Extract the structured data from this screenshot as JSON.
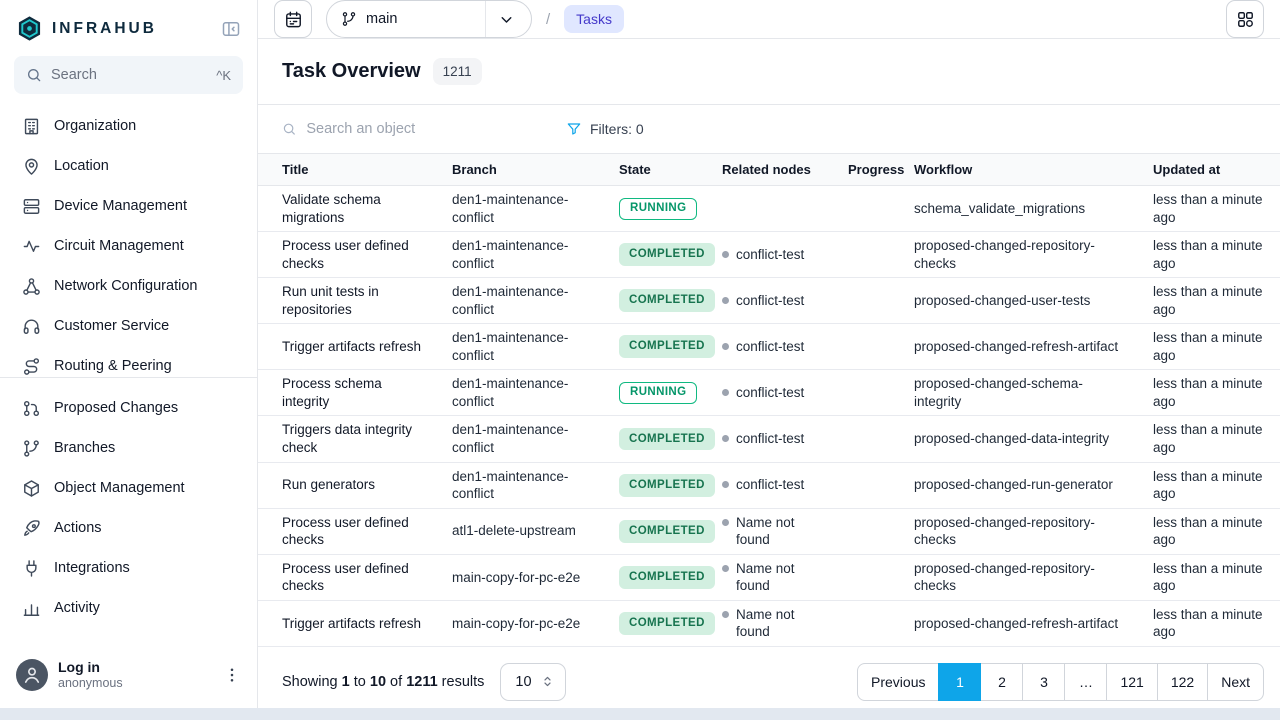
{
  "colors": {
    "accent": "#0ea5e9",
    "brand_navy": "#0e2a3d",
    "brand_teal": "#20c8cd",
    "completed_bg": "#d2efe0",
    "completed_text": "#17744f",
    "running_green": "#10b981",
    "breadcrumb_bg": "#e0e7ff",
    "breadcrumb_text": "#4338ca"
  },
  "sidebar": {
    "logo_text": "INFRAHUB",
    "search": {
      "placeholder": "Search",
      "shortcut": "^K"
    },
    "primary_nav": [
      {
        "label": "Organization",
        "icon": "building"
      },
      {
        "label": "Location",
        "icon": "map-pin"
      },
      {
        "label": "Device Management",
        "icon": "server"
      },
      {
        "label": "Circuit Management",
        "icon": "circuit"
      },
      {
        "label": "Network Configuration",
        "icon": "network"
      },
      {
        "label": "Customer Service",
        "icon": "headset"
      },
      {
        "label": "Routing & Peering",
        "icon": "route"
      }
    ],
    "secondary_nav": [
      {
        "label": "Proposed Changes",
        "icon": "pull-request"
      },
      {
        "label": "Branches",
        "icon": "git-branch"
      },
      {
        "label": "Object Management",
        "icon": "cube"
      },
      {
        "label": "Actions",
        "icon": "rocket"
      },
      {
        "label": "Integrations",
        "icon": "plug"
      },
      {
        "label": "Activity",
        "icon": "chart"
      }
    ],
    "user": {
      "login_label": "Log in",
      "username": "anonymous"
    }
  },
  "header": {
    "branch": "main",
    "breadcrumb_separator": "/",
    "breadcrumb_current": "Tasks"
  },
  "page": {
    "title": "Task Overview",
    "count": "1211"
  },
  "toolbar": {
    "search_placeholder": "Search an object",
    "filters_label": "Filters: 0"
  },
  "table": {
    "columns": [
      "Title",
      "Branch",
      "State",
      "Related nodes",
      "Progress",
      "Workflow",
      "Updated at"
    ],
    "rows": [
      {
        "title": "Validate schema migrations",
        "branch": "den1-maintenance-conflict",
        "state": "RUNNING",
        "related": "",
        "progress": "",
        "workflow": "schema_validate_migrations",
        "updated": "less than a minute ago"
      },
      {
        "title": "Process user defined checks",
        "branch": "den1-maintenance-conflict",
        "state": "COMPLETED",
        "related": "conflict-test",
        "progress": "",
        "workflow": "proposed-changed-repository-checks",
        "updated": "less than a minute ago"
      },
      {
        "title": "Run unit tests in repositories",
        "branch": "den1-maintenance-conflict",
        "state": "COMPLETED",
        "related": "conflict-test",
        "progress": "",
        "workflow": "proposed-changed-user-tests",
        "updated": "less than a minute ago"
      },
      {
        "title": "Trigger artifacts refresh",
        "branch": "den1-maintenance-conflict",
        "state": "COMPLETED",
        "related": "conflict-test",
        "progress": "",
        "workflow": "proposed-changed-refresh-artifact",
        "updated": "less than a minute ago"
      },
      {
        "title": "Process schema integrity",
        "branch": "den1-maintenance-conflict",
        "state": "RUNNING",
        "related": "conflict-test",
        "progress": "",
        "workflow": "proposed-changed-schema-integrity",
        "updated": "less than a minute ago"
      },
      {
        "title": "Triggers data integrity check",
        "branch": "den1-maintenance-conflict",
        "state": "COMPLETED",
        "related": "conflict-test",
        "progress": "",
        "workflow": "proposed-changed-data-integrity",
        "updated": "less than a minute ago"
      },
      {
        "title": "Run generators",
        "branch": "den1-maintenance-conflict",
        "state": "COMPLETED",
        "related": "conflict-test",
        "progress": "",
        "workflow": "proposed-changed-run-generator",
        "updated": "less than a minute ago"
      },
      {
        "title": "Process user defined checks",
        "branch": "atl1-delete-upstream",
        "state": "COMPLETED",
        "related": "Name not found",
        "progress": "",
        "workflow": "proposed-changed-repository-checks",
        "updated": "less than a minute ago"
      },
      {
        "title": "Process user defined checks",
        "branch": "main-copy-for-pc-e2e",
        "state": "COMPLETED",
        "related": "Name not found",
        "progress": "",
        "workflow": "proposed-changed-repository-checks",
        "updated": "less than a minute ago"
      },
      {
        "title": "Trigger artifacts refresh",
        "branch": "main-copy-for-pc-e2e",
        "state": "COMPLETED",
        "related": "Name not found",
        "progress": "",
        "workflow": "proposed-changed-refresh-artifact",
        "updated": "less than a minute ago"
      }
    ]
  },
  "pagination": {
    "summary_parts": [
      {
        "text": "Showing ",
        "bold": false
      },
      {
        "text": "1",
        "bold": true
      },
      {
        "text": " to ",
        "bold": false
      },
      {
        "text": "10",
        "bold": true
      },
      {
        "text": " of ",
        "bold": false
      },
      {
        "text": "1211",
        "bold": true
      },
      {
        "text": " results",
        "bold": false
      }
    ],
    "page_size": "10",
    "buttons": [
      "Previous",
      "1",
      "2",
      "3",
      "…",
      "121",
      "122",
      "Next"
    ],
    "active": "1"
  }
}
